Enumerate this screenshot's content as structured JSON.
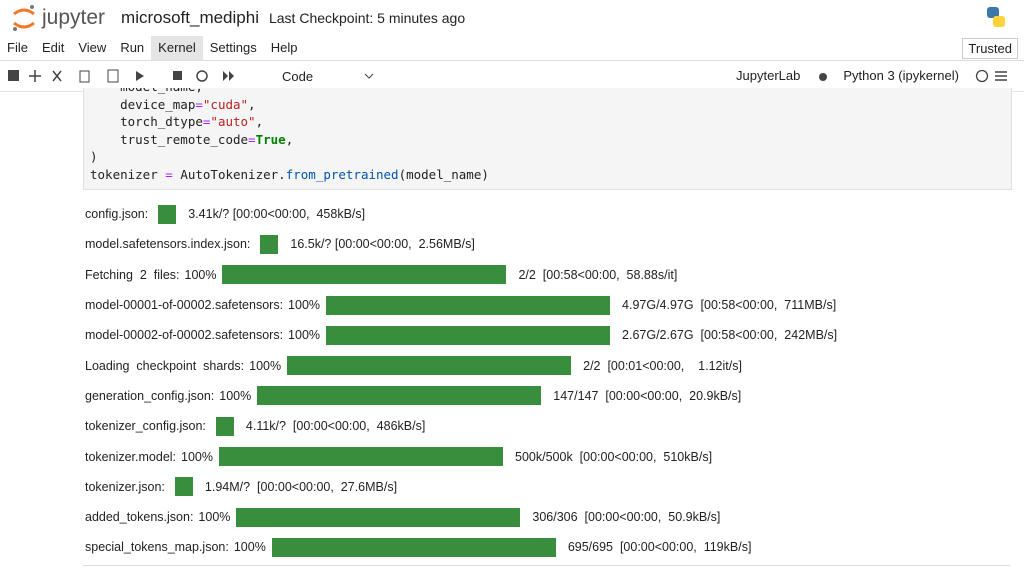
{
  "header": {
    "logo": "jupyter",
    "notebook_name": "microsoft_mediphi",
    "checkpoint": "Last Checkpoint: 5 minutes ago"
  },
  "menu": {
    "items": [
      "File",
      "Edit",
      "View",
      "Run",
      "Kernel",
      "Settings",
      "Help"
    ],
    "active": "Kernel",
    "trusted": "Trusted"
  },
  "toolbar": {
    "cell_type": "Code",
    "jupyterlab": "JupyterLab",
    "kernel": "Python 3 (ipykernel)"
  },
  "code": {
    "lines": [
      "    model_name,",
      "    device_map=\"cuda\",",
      "    torch_dtype=\"auto\",",
      "    trust_remote_code=True,",
      ")",
      "tokenizer = AutoTokenizer.from_pretrained(model_name)"
    ]
  },
  "progress": [
    {
      "label": "config.json:",
      "stats": "3.41k/? [00:00<00:00,  458kB/s]"
    },
    {
      "label": "model.safetensors.index.json:",
      "stats": "16.5k/? [00:00<00:00,  2.56MB/s]"
    },
    {
      "label": "Fetching  2  files:",
      "percent": "100%",
      "stats": "2/2  [00:58<00:00,  58.88s/it]"
    },
    {
      "label": "model-00001-of-00002.safetensors:",
      "percent": "100%",
      "stats": "4.97G/4.97G  [00:58<00:00,  711MB/s]"
    },
    {
      "label": "model-00002-of-00002.safetensors:",
      "percent": "100%",
      "stats": "2.67G/2.67G  [00:58<00:00,  242MB/s]"
    },
    {
      "label": "Loading  checkpoint  shards:",
      "percent": "100%",
      "stats": "2/2  [00:01<00:00,    1.12it/s]"
    },
    {
      "label": "generation_config.json:",
      "percent": "100%",
      "stats": "147/147  [00:00<00:00,  20.9kB/s]"
    },
    {
      "label": "tokenizer_config.json:",
      "stats": "4.11k/?  [00:00<00:00,  486kB/s]"
    },
    {
      "label": "tokenizer.model:",
      "percent": "100%",
      "stats": "500k/500k  [00:00<00:00,  510kB/s]"
    },
    {
      "label": "tokenizer.json:",
      "stats": "1.94M/?  [00:00<00:00,  27.6MB/s]"
    },
    {
      "label": "added_tokens.json:",
      "percent": "100%",
      "stats": "306/306  [00:00<00:00,  50.9kB/s]"
    },
    {
      "label": "special_tokens_map.json:",
      "percent": "100%",
      "stats": "695/695  [00:00<00:00,  119kB/s]"
    }
  ]
}
